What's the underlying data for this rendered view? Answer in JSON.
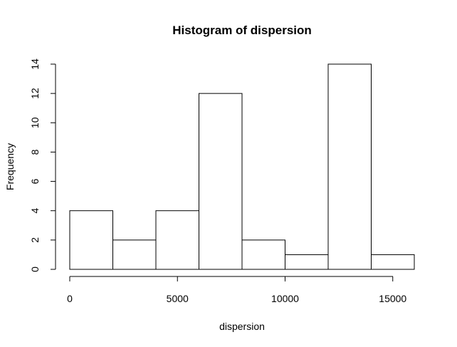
{
  "chart_data": {
    "type": "bar",
    "subtype": "histogram",
    "title": "Histogram of dispersion",
    "xlabel": "dispersion",
    "ylabel": "Frequency",
    "bins": [
      {
        "start": 0,
        "end": 2000,
        "count": 4
      },
      {
        "start": 2000,
        "end": 4000,
        "count": 2
      },
      {
        "start": 4000,
        "end": 6000,
        "count": 4
      },
      {
        "start": 6000,
        "end": 8000,
        "count": 12
      },
      {
        "start": 8000,
        "end": 10000,
        "count": 2
      },
      {
        "start": 10000,
        "end": 12000,
        "count": 1
      },
      {
        "start": 12000,
        "end": 14000,
        "count": 14
      },
      {
        "start": 14000,
        "end": 16000,
        "count": 1
      }
    ],
    "xlim": [
      0,
      16000
    ],
    "ylim": [
      0,
      14
    ],
    "x_ticks": [
      {
        "value": 0,
        "label": "0"
      },
      {
        "value": 5000,
        "label": "5000"
      },
      {
        "value": 10000,
        "label": "10000"
      },
      {
        "value": 15000,
        "label": "15000"
      }
    ],
    "y_ticks": [
      {
        "value": 0,
        "label": "0"
      },
      {
        "value": 2,
        "label": "2"
      },
      {
        "value": 4,
        "label": "4"
      },
      {
        "value": 6,
        "label": "6"
      },
      {
        "value": 8,
        "label": "8"
      },
      {
        "value": 10,
        "label": "10"
      },
      {
        "value": 12,
        "label": "12"
      },
      {
        "value": 14,
        "label": "14"
      }
    ],
    "grid": false,
    "bar_fill": "#ffffff",
    "bar_stroke": "#000000"
  }
}
